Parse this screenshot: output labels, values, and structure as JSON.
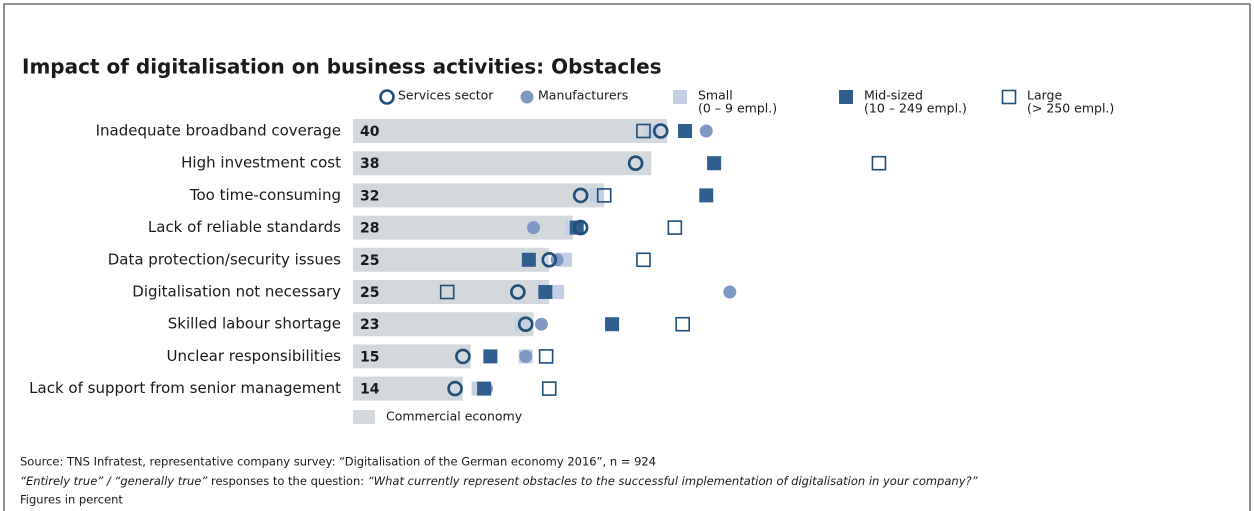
{
  "chart_data": {
    "type": "bar",
    "title": "Impact of digitalisation on business activities: Obstacles",
    "categories": [
      "Inadequate broadband coverage",
      "High investment cost",
      "Too time-consuming",
      "Lack of reliable standards",
      "Data protection/security issues",
      "Digitalisation not necessary",
      "Skilled labour shortage",
      "Unclear responsibilities",
      "Lack of support from senior management"
    ],
    "bar_name": "Commercial economy",
    "values": [
      40,
      38,
      32,
      28,
      25,
      25,
      23,
      15,
      14
    ],
    "color": "#d3d8dc",
    "xlim": [
      0,
      100
    ],
    "series": [
      {
        "name": "Small",
        "detail": "(0 – 9 empl.)",
        "marker": "square",
        "color": "#c5cfe3",
        "values": [
          38,
          46,
          31,
          28,
          27,
          26,
          21.5,
          22,
          16
        ]
      },
      {
        "name": "Manufacturers",
        "marker": "dot",
        "color": "#7f98c4",
        "values": [
          45,
          46,
          45,
          23,
          26,
          48,
          24,
          22,
          17
        ]
      },
      {
        "name": "Mid-sized",
        "detail": "(10 – 249 empl.)",
        "marker": "square",
        "color": "#2f5f8f",
        "values": [
          42.3,
          46,
          45,
          28.5,
          22.4,
          24.5,
          33,
          17.5,
          16.7
        ]
      },
      {
        "name": "Large",
        "detail": "(> 250 empl.)",
        "marker": "open-square",
        "color": "#1f4e79",
        "values": [
          37,
          67,
          32,
          41,
          37,
          12,
          42,
          24.6,
          25
        ]
      },
      {
        "name": "Services sector",
        "marker": "open-circle",
        "color": "#1f4e79",
        "values": [
          39.2,
          36,
          29,
          29,
          25,
          21,
          22,
          14,
          13
        ]
      }
    ],
    "legend_order": [
      4,
      1,
      0,
      2,
      3
    ],
    "source": "Source: TNS Infratest, representative company survey: “Digitalisation of the German economy 2016”, n = 924",
    "note": [
      "“Entirely true” / “generally true”",
      " responses to the question: ",
      "“What currently represent obstacles to the successful implementation of digitalisation in your company?”"
    ],
    "units": "Figures in percent"
  }
}
